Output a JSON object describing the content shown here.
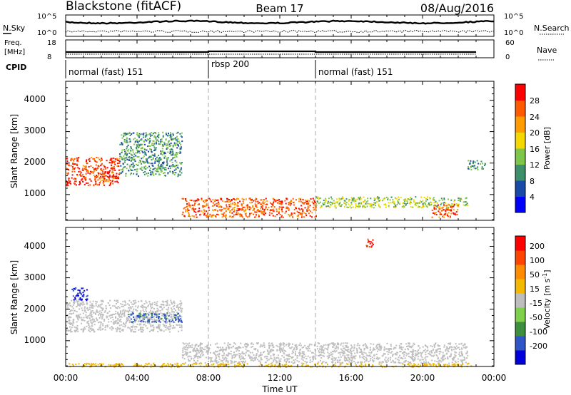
{
  "header": {
    "station": "Blackstone (fitACF)",
    "beam": "Beam 17",
    "date": "08/Aug/2016"
  },
  "noise_panel": {
    "left_label": "N.Sky",
    "right_label": "N.Search",
    "left_ticks": [
      "10^5",
      "10^0"
    ],
    "right_ticks": [
      "10^5",
      "10^0"
    ]
  },
  "freq_panel": {
    "left_label_line1": "Freq.",
    "left_label_line2": "[MHz]",
    "left_ticks": [
      "18",
      "8"
    ],
    "right_label": "Nave",
    "right_ticks": [
      "60",
      "0"
    ]
  },
  "cpid": {
    "label": "CPID",
    "segments": [
      {
        "name": "normal (fast) 151",
        "start_h": 0,
        "end_h": 8
      },
      {
        "name": "rbsp 200",
        "start_h": 8,
        "end_h": 14
      },
      {
        "name": "normal (fast) 151",
        "start_h": 14,
        "end_h": 24
      }
    ]
  },
  "power_panel": {
    "ylabel": "Slant Range [km]",
    "yticks": [
      "1000",
      "2000",
      "3000",
      "4000"
    ],
    "colorbar_label": "Power [dB]",
    "colorbar_ticks": [
      "4",
      "8",
      "12",
      "16",
      "20",
      "24",
      "28"
    ],
    "colors": [
      "#0000ff",
      "#1a4aa8",
      "#3c8f6a",
      "#7ec64a",
      "#f4d800",
      "#ff9d00",
      "#ff5a00",
      "#ff0000"
    ]
  },
  "velocity_panel": {
    "ylabel": "Slant Range [km]",
    "yticks": [
      "1000",
      "2000",
      "3000",
      "4000"
    ],
    "colorbar_label": "Velocity [m s",
    "colorbar_label_sup": "-1",
    "colorbar_ticks": [
      "-200",
      "-100",
      "-50",
      "-15",
      "15",
      "50",
      "100",
      "200"
    ],
    "colors": [
      "#0000dc",
      "#2f55c8",
      "#3c8f3c",
      "#7fd04b",
      "#bebebe",
      "#f5b800",
      "#ff8c00",
      "#ff4500",
      "#ff0000"
    ]
  },
  "time_axis": {
    "ticks": [
      "00:00",
      "04:00",
      "08:00",
      "12:00",
      "16:00",
      "20:00",
      "00:00"
    ],
    "label": "Time UT"
  },
  "chart_data": {
    "type": "heatmap",
    "title": "Blackstone (fitACF) Beam 17 08/Aug/2016",
    "xlabel": "Time UT",
    "ylabel": "Slant Range [km]",
    "x_range_hours": [
      0,
      24
    ],
    "y_range_km": [
      180,
      4600
    ],
    "panels": [
      {
        "name": "Power",
        "unit": "dB",
        "color_range": [
          0,
          30
        ],
        "regions": [
          {
            "t": [
              0,
              3
            ],
            "range_km": [
              1300,
              2200
            ],
            "value": 26
          },
          {
            "t": [
              3,
              6.5
            ],
            "range_km": [
              1600,
              3000
            ],
            "value": 10
          },
          {
            "t": [
              6.5,
              14
            ],
            "range_km": [
              300,
              900
            ],
            "value": 24
          },
          {
            "t": [
              14,
              22.5
            ],
            "range_km": [
              600,
              950
            ],
            "value": 14
          },
          {
            "t": [
              20.5,
              22
            ],
            "range_km": [
              300,
              700
            ],
            "value": 25
          },
          {
            "t": [
              22.5,
              23.5
            ],
            "range_km": [
              1800,
              2100
            ],
            "value": 10
          }
        ]
      },
      {
        "name": "Velocity",
        "unit": "m s-1",
        "color_range": [
          -250,
          250
        ],
        "regions": [
          {
            "t": [
              0,
              6.5
            ],
            "range_km": [
              1300,
              2300
            ],
            "value": 0
          },
          {
            "t": [
              0.3,
              1.2
            ],
            "range_km": [
              2300,
              2700
            ],
            "value": -200
          },
          {
            "t": [
              3.5,
              6.5
            ],
            "range_km": [
              1600,
              1900
            ],
            "value": -150
          },
          {
            "t": [
              6.5,
              22.5
            ],
            "range_km": [
              300,
              950
            ],
            "value": 0
          },
          {
            "t": [
              0,
              23
            ],
            "range_km": [
              180,
              300
            ],
            "value": 60
          },
          {
            "t": [
              16.8,
              17.2
            ],
            "range_km": [
              4000,
              4300
            ],
            "value": 200
          }
        ]
      }
    ],
    "cpid_segments": [
      {
        "cpid": "normal (fast) 151",
        "t": [
          0,
          8
        ]
      },
      {
        "cpid": "rbsp 200",
        "t": [
          8,
          14
        ]
      },
      {
        "cpid": "normal (fast) 151",
        "t": [
          14,
          24
        ]
      }
    ]
  }
}
